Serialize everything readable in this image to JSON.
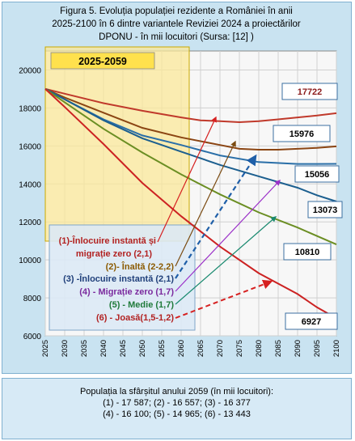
{
  "chart_data": {
    "type": "line",
    "title": "Figura 5. Evoluția populației rezidente a României în anii 2025-2100 în 6 dintre variantele Reviziei 2024 a proiectărilor DPONU - în mii locuitori (Sursa: [12] )",
    "title_lines": [
      "Figura 5. Evoluția populației rezidente a României în anii",
      "2025-2100 în 6 dintre variantele Reviziei 2024 a proiectărilor",
      "DPONU - în mii locuitori (Sursa: [12] )"
    ],
    "xlabel": "",
    "ylabel": "",
    "xlim": [
      2025,
      2100
    ],
    "ylim": [
      6000,
      21000
    ],
    "x_ticks": [
      2025,
      2030,
      2035,
      2040,
      2045,
      2050,
      2055,
      2060,
      2065,
      2070,
      2075,
      2080,
      2085,
      2090,
      2095,
      2100
    ],
    "y_ticks": [
      6000,
      8000,
      10000,
      12000,
      14000,
      16000,
      18000,
      20000
    ],
    "grid": true,
    "highlight_band": {
      "label": "2025-2059",
      "x_from": 2025,
      "x_to": 2060
    },
    "series": [
      {
        "name": "(1)-Înlocuire instantă și migrație zero (2,1)",
        "color": "#c0392b",
        "x": [
          2025,
          2030,
          2040,
          2050,
          2060,
          2065,
          2070,
          2075,
          2080,
          2085,
          2090,
          2095,
          2100
        ],
        "y": [
          19000,
          18750,
          18250,
          17850,
          17500,
          17350,
          17300,
          17250,
          17300,
          17400,
          17500,
          17600,
          17722
        ]
      },
      {
        "name": "(2)- Înaltă (2-2,2)",
        "color": "#8b4513",
        "x": [
          2025,
          2030,
          2040,
          2050,
          2060,
          2070,
          2075,
          2080,
          2085,
          2090,
          2095,
          2100
        ],
        "y": [
          19000,
          18550,
          17750,
          16950,
          16450,
          16050,
          15850,
          15800,
          15800,
          15850,
          15900,
          15976
        ]
      },
      {
        "name": "(3) -Înlocuire instantă (2,1)",
        "color": "#2a6fa8",
        "x": [
          2025,
          2030,
          2040,
          2050,
          2060,
          2070,
          2080,
          2090,
          2095,
          2100
        ],
        "y": [
          19000,
          18450,
          17400,
          16550,
          16050,
          15500,
          15150,
          15050,
          15050,
          15056
        ]
      },
      {
        "name": "(4) - Migrație zero (1,7)",
        "color": "#1c5f8f",
        "x": [
          2025,
          2030,
          2040,
          2050,
          2060,
          2070,
          2080,
          2090,
          2095,
          2100
        ],
        "y": [
          19000,
          18450,
          17350,
          16400,
          15700,
          15000,
          14400,
          13800,
          13400,
          13073
        ]
      },
      {
        "name": "(5) - Medie (1,7)",
        "color": "#6b8e23",
        "x": [
          2025,
          2030,
          2040,
          2050,
          2060,
          2070,
          2080,
          2090,
          2100
        ],
        "y": [
          19000,
          18300,
          16900,
          15650,
          14500,
          13450,
          12500,
          11700,
          10810
        ]
      },
      {
        "name": "(6) - Joasă(1,5-1,2)",
        "color": "#cc2222",
        "x": [
          2025,
          2030,
          2040,
          2050,
          2060,
          2070,
          2080,
          2090,
          2095,
          2100
        ],
        "y": [
          19000,
          18050,
          16100,
          14050,
          12300,
          10700,
          9300,
          8200,
          7500,
          6927
        ]
      }
    ],
    "end_labels": [
      {
        "text": "17722",
        "color": "#8b1a1a"
      },
      {
        "text": "15976",
        "color": "#000000"
      },
      {
        "text": "15056",
        "color": "#000000"
      },
      {
        "text": "13073",
        "color": "#000000"
      },
      {
        "text": "10810",
        "color": "#000000"
      },
      {
        "text": "6927",
        "color": "#000000"
      }
    ],
    "legend": [
      {
        "line1": "(1)-Înlocuire instantă și",
        "line2": "migrație zero (2,1)",
        "color": "#b22222"
      },
      {
        "line1": "(2)- Înaltă (2-2,2)",
        "color": "#8b5a00"
      },
      {
        "line1": "(3) -Înlocuire instantă (2,1)",
        "color": "#1f3f7a"
      },
      {
        "line1": "(4) - Migrație zero (1,7)",
        "color": "#7b2a9e"
      },
      {
        "line1": "(5) - Medie (1,7)",
        "color": "#1f7a3a"
      },
      {
        "line1": "(6) - Joasă(1,5-1,2)",
        "color": "#b22222"
      }
    ]
  },
  "summary": {
    "title": "Populația la sfârșitul anului 2059 (în mii locuitori):",
    "row1": "(1) -  17 587;  (2) - 16 557;  (3) -  16 377",
    "row2": "(4) -  16 100;  (5) - 14 965;  (6) -  13 443"
  }
}
